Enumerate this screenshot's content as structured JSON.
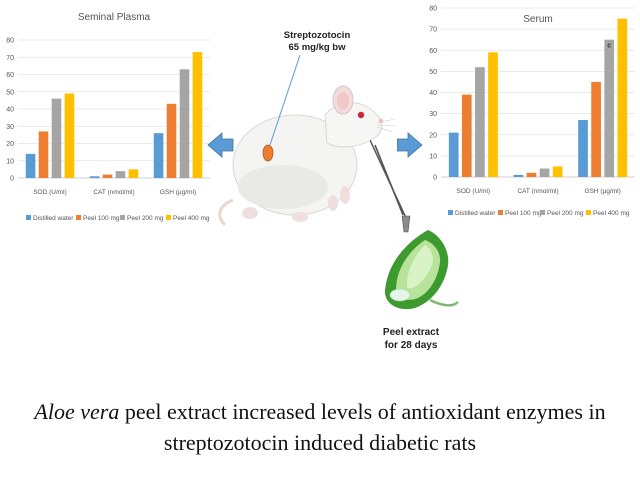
{
  "caption": {
    "italic": "Aloe vera",
    "rest": " peel extract increased levels of antioxidant enzymes in streptozotocin induced diabetic rats"
  },
  "labels": {
    "streptozotocin_line1": "Streptozotocin",
    "streptozotocin_line2": "65 mg/kg bw",
    "peel_line1": "Peel extract",
    "peel_line2": "for 28 days"
  },
  "colors": {
    "series": [
      "#5b9bd5",
      "#ed7d31",
      "#a5a5a5",
      "#ffc000"
    ],
    "arrow": "#5b9bd5",
    "injection_dot": "#ed7d31"
  },
  "chart_data": [
    {
      "type": "bar",
      "title": "Seminal Plasma",
      "categories": [
        "SOD (U/ml)",
        "CAT (nmol/ml)",
        "GSH (µg/ml)"
      ],
      "series": [
        {
          "name": "Distilled water",
          "values": [
            14,
            1,
            26
          ]
        },
        {
          "name": "Peel 100 mg",
          "values": [
            27,
            2,
            43
          ]
        },
        {
          "name": "Peel 200 mg",
          "values": [
            46,
            4,
            63
          ]
        },
        {
          "name": "Peel 400 mg",
          "values": [
            49,
            5,
            73
          ]
        }
      ],
      "ylim": [
        0,
        80
      ],
      "yticks": [
        0,
        10,
        20,
        30,
        40,
        50,
        60,
        70,
        80
      ],
      "grid": true,
      "legend": "bottom",
      "annotations": []
    },
    {
      "type": "bar",
      "title": "Serum",
      "categories": [
        "SOD (U/ml)",
        "CAT (nmol/ml)",
        "GSH (µg/ml)"
      ],
      "series": [
        {
          "name": "Distilled water",
          "values": [
            21,
            1,
            27
          ]
        },
        {
          "name": "Peel 100 mg",
          "values": [
            39,
            2,
            45
          ]
        },
        {
          "name": "Peel 200 mg",
          "values": [
            52,
            4,
            65
          ]
        },
        {
          "name": "Peel 400 mg",
          "values": [
            59,
            5,
            75
          ]
        }
      ],
      "ylim": [
        0,
        80
      ],
      "yticks": [
        0,
        10,
        20,
        30,
        40,
        50,
        60,
        70,
        80
      ],
      "grid": true,
      "legend": "bottom",
      "annotations": [
        {
          "category": 2,
          "series": 2,
          "text": "c"
        }
      ]
    }
  ]
}
